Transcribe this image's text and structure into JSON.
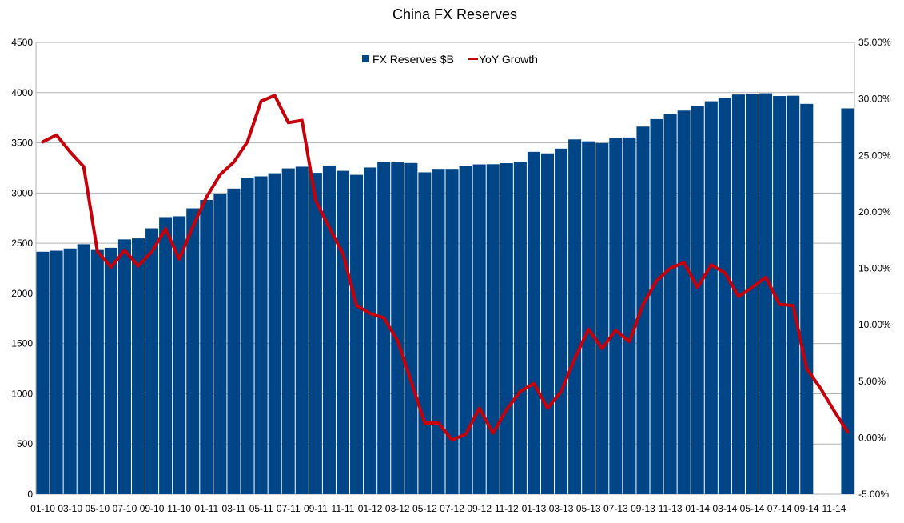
{
  "chart_data": {
    "type": "bar",
    "title": "China FX Reserves",
    "categories": [
      "01-10",
      "02-10",
      "03-10",
      "04-10",
      "05-10",
      "06-10",
      "07-10",
      "08-10",
      "09-10",
      "10-10",
      "11-10",
      "12-10",
      "01-11",
      "02-11",
      "03-11",
      "04-11",
      "05-11",
      "06-11",
      "07-11",
      "08-11",
      "09-11",
      "10-11",
      "11-11",
      "12-11",
      "01-12",
      "02-12",
      "03-12",
      "04-12",
      "05-12",
      "06-12",
      "07-12",
      "08-12",
      "09-12",
      "10-12",
      "11-12",
      "12-12",
      "01-13",
      "02-13",
      "03-13",
      "04-13",
      "05-13",
      "06-13",
      "07-13",
      "08-13",
      "09-13",
      "10-13",
      "11-13",
      "12-13",
      "01-14",
      "02-14",
      "03-14",
      "04-14",
      "05-14",
      "06-14",
      "07-14",
      "08-14",
      "09-14",
      "10-14",
      "11-14",
      "12-14"
    ],
    "x_tick_labels": [
      "01-10",
      "03-10",
      "05-10",
      "07-10",
      "09-10",
      "11-10",
      "01-11",
      "03-11",
      "05-11",
      "07-11",
      "09-11",
      "11-11",
      "01-12",
      "03-12",
      "05-12",
      "07-12",
      "09-12",
      "11-12",
      "01-13",
      "03-13",
      "05-13",
      "07-13",
      "09-13",
      "11-13",
      "01-14",
      "03-14",
      "05-14",
      "07-14",
      "09-14",
      "11-14"
    ],
    "y_left": {
      "ylim": [
        0,
        4500
      ],
      "ticks": [
        "0",
        "500",
        "1000",
        "1500",
        "2000",
        "2500",
        "3000",
        "3500",
        "4000",
        "4500"
      ]
    },
    "y_right": {
      "ylim": [
        -5,
        35
      ],
      "ticks": [
        "-5.00%",
        "0.00%",
        "5.00%",
        "10.00%",
        "15.00%",
        "20.00%",
        "25.00%",
        "30.00%",
        "35.00%"
      ]
    },
    "grid": true,
    "legend_position": "top-center",
    "series": [
      {
        "name": "FX Reserves $B",
        "kind": "bar",
        "axis": "left",
        "color": "#004586",
        "values": [
          2415,
          2425,
          2447,
          2490,
          2440,
          2454,
          2538,
          2548,
          2648,
          2760,
          2768,
          2847,
          2931,
          2990,
          3044,
          3146,
          3166,
          3197,
          3245,
          3262,
          3201,
          3274,
          3221,
          3181,
          3254,
          3309,
          3305,
          3299,
          3206,
          3240,
          3240,
          3273,
          3285,
          3287,
          3297,
          3312,
          3410,
          3395,
          3442,
          3534,
          3515,
          3497,
          3548,
          3553,
          3662,
          3736,
          3789,
          3821,
          3866,
          3914,
          3948,
          3981,
          3984,
          3993,
          3966,
          3969,
          3888,
          null,
          null,
          3843
        ]
      },
      {
        "name": "YoY Growth",
        "kind": "line",
        "axis": "right",
        "color": "#c5000b",
        "values": [
          26.2,
          26.8,
          25.3,
          24.0,
          16.5,
          15.1,
          16.6,
          15.2,
          16.5,
          18.5,
          15.8,
          18.7,
          21.3,
          23.3,
          24.4,
          26.2,
          29.8,
          30.3,
          27.9,
          28.1,
          21.0,
          18.6,
          16.3,
          11.7,
          11.0,
          10.6,
          8.6,
          5.0,
          1.3,
          1.3,
          -0.2,
          0.3,
          2.6,
          0.4,
          2.5,
          4.1,
          4.8,
          2.6,
          4.1,
          7.0,
          9.6,
          7.9,
          9.5,
          8.5,
          11.8,
          13.9,
          15.0,
          15.5,
          13.3,
          15.3,
          14.6,
          12.5,
          13.3,
          14.2,
          11.8,
          11.7,
          6.1,
          4.4,
          2.4,
          0.5
        ]
      }
    ]
  }
}
